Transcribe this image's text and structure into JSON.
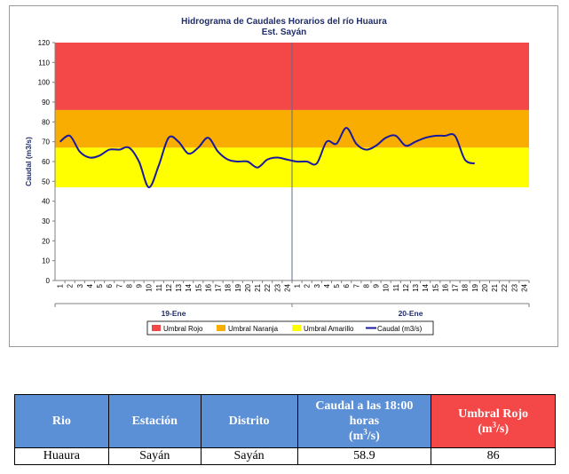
{
  "chart_data": {
    "type": "line",
    "title": "Hidrograma de Caudales Horarios del río Huaura",
    "subtitle": "Est. Sayán",
    "ylabel": "Caudal  (m3/s)",
    "ylim": [
      0,
      120
    ],
    "yticks": [
      0,
      10,
      20,
      30,
      40,
      50,
      60,
      70,
      80,
      90,
      100,
      110,
      120
    ],
    "hour_ticks": [
      "1",
      "2",
      "3",
      "4",
      "5",
      "6",
      "7",
      "8",
      "9",
      "10",
      "11",
      "12",
      "13",
      "14",
      "15",
      "16",
      "17",
      "18",
      "19",
      "20",
      "21",
      "22",
      "23",
      "24"
    ],
    "days": [
      "19-Ene",
      "20-Ene"
    ],
    "thresholds": [
      {
        "name": "Umbral Rojo",
        "from": 86,
        "to": 120,
        "color": "#f44848"
      },
      {
        "name": "Umbral Naranja",
        "from": 67,
        "to": 86,
        "color": "#f8ad00"
      },
      {
        "name": "Umbral Amarillo",
        "from": 47,
        "to": 67,
        "color": "#ffff00"
      }
    ],
    "series": [
      {
        "name": "Caudal (m3/s)",
        "color": "#1a1a9e",
        "values": [
          70,
          73,
          65,
          62,
          63,
          66,
          66,
          67,
          60,
          47,
          58,
          72,
          70,
          64,
          67,
          72,
          65,
          61,
          60,
          60,
          57,
          61,
          62,
          61,
          60,
          60,
          59,
          70,
          69,
          77,
          69,
          66,
          68,
          72,
          73,
          68,
          70,
          72,
          73,
          73,
          73,
          61,
          59
        ]
      }
    ],
    "legend_position": "bottom",
    "grid": false
  },
  "table": {
    "headers": [
      "Rio",
      "Estación",
      "Distrito",
      "Caudal a las 18:00 horas",
      "(m",
      "3",
      "/s)",
      "Umbral Rojo",
      "(m",
      "3",
      "/s)"
    ],
    "row": [
      "Huaura",
      "Sayán",
      "Sayán",
      "58.9",
      "86"
    ],
    "colors": {
      "header_blue": "#5b8fd6",
      "header_red": "#f44848"
    }
  }
}
